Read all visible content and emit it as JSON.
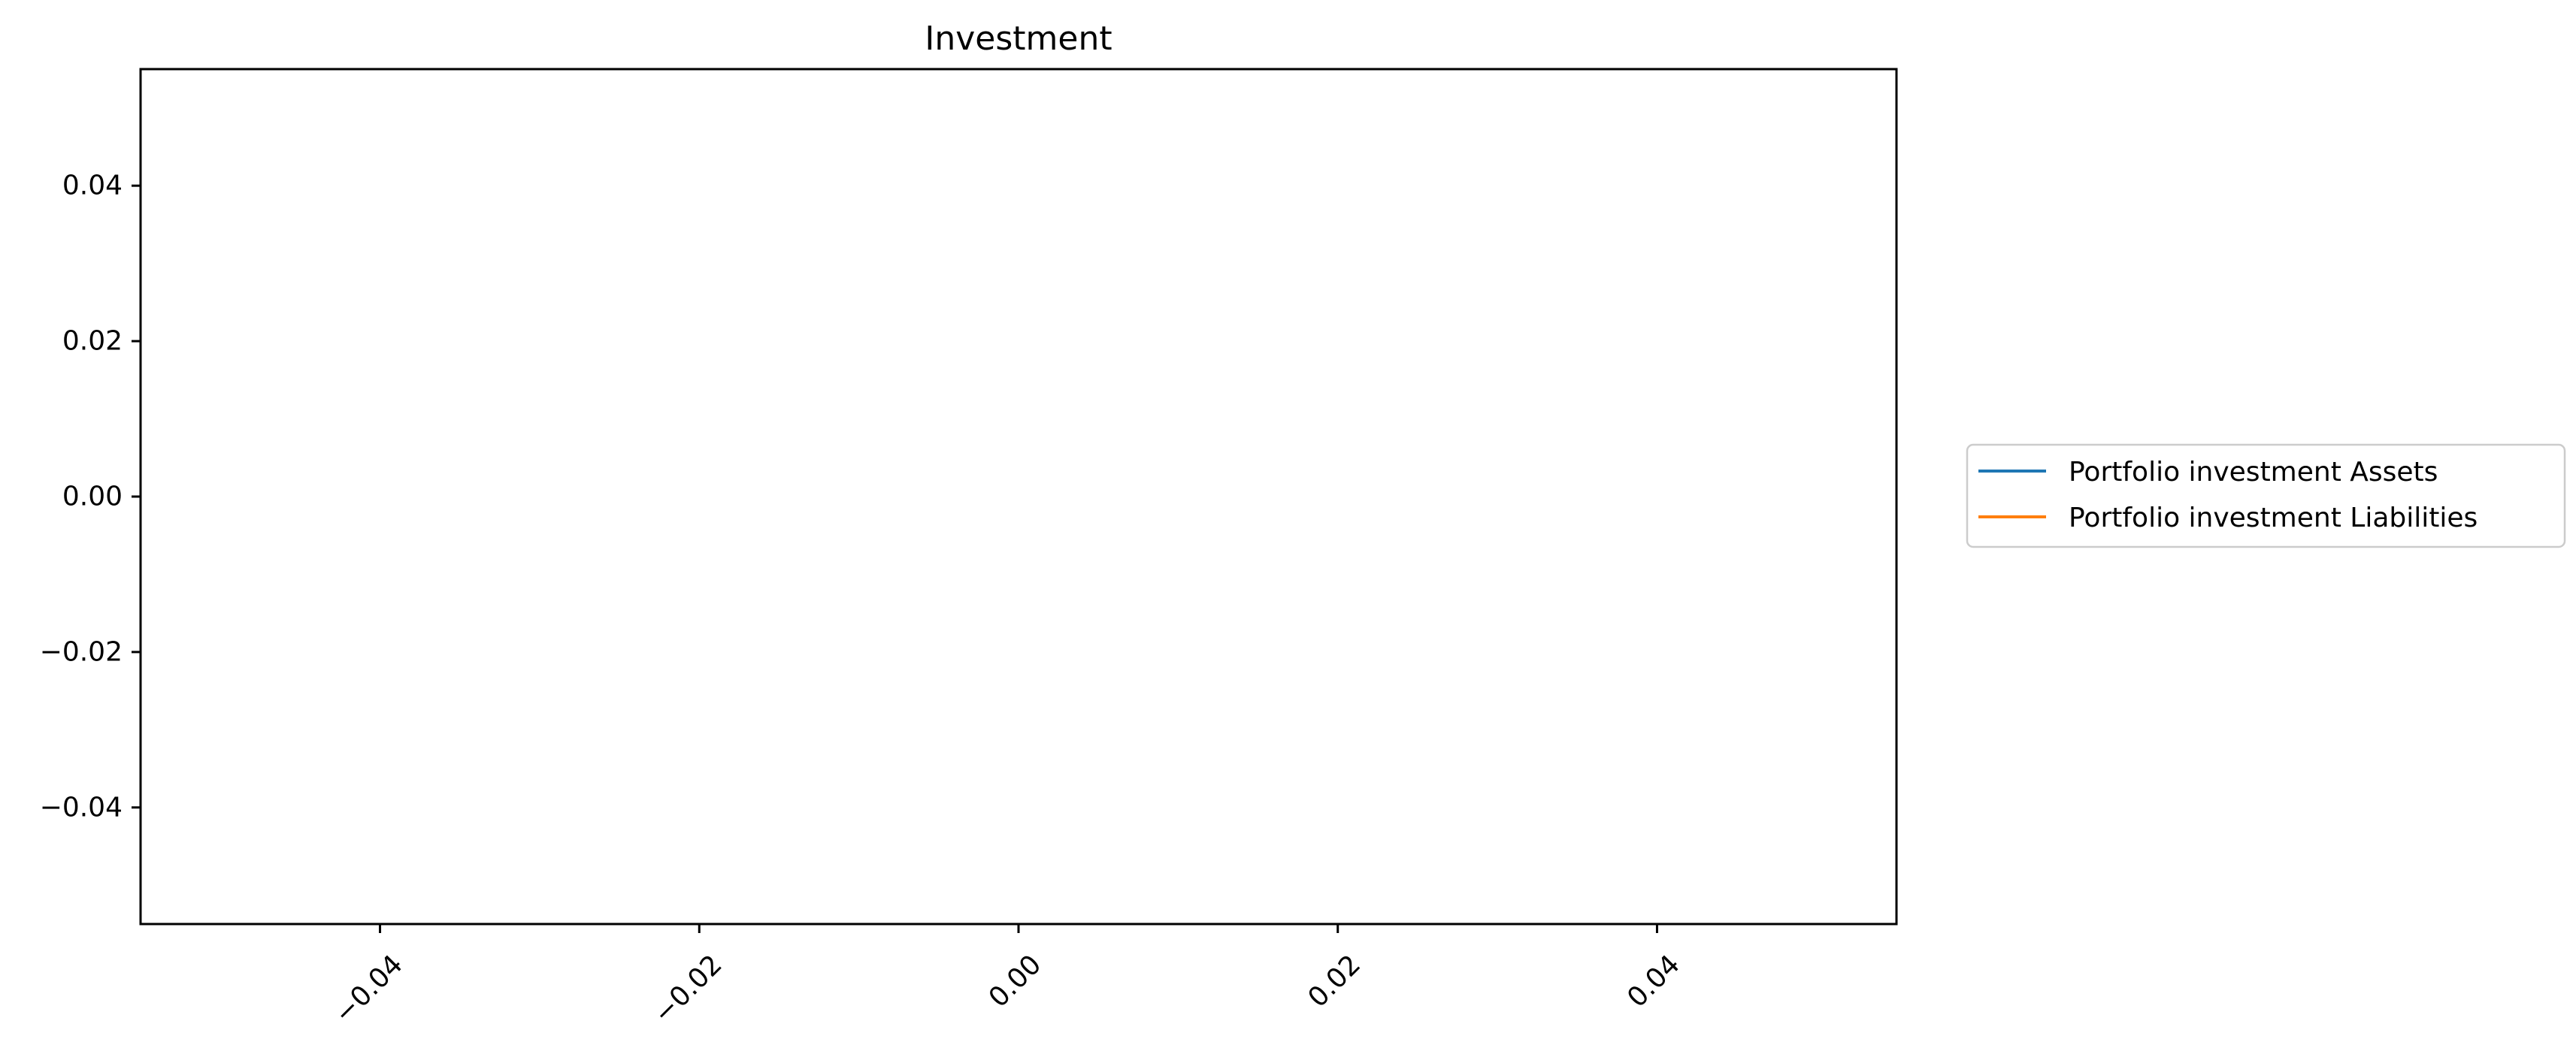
{
  "chart_data": {
    "type": "line",
    "title": "Investment",
    "xlabel": "",
    "ylabel": "",
    "xlim": [
      -0.055,
      0.055
    ],
    "ylim": [
      -0.055,
      0.055
    ],
    "xticks": [
      -0.04,
      -0.02,
      0.0,
      0.02,
      0.04
    ],
    "xtick_labels": [
      "−0.04",
      "−0.02",
      "0.00",
      "0.02",
      "0.04"
    ],
    "yticks": [
      0.04,
      0.02,
      0.0,
      -0.02,
      -0.04
    ],
    "ytick_labels": [
      "0.04",
      "0.02",
      "0.00",
      "−0.02",
      "−0.04"
    ],
    "xtick_rotation_deg": 45,
    "grid": false,
    "legend_position": "outside-right",
    "series": [
      {
        "name": "Portfolio investment Assets",
        "color": "#1f77b4",
        "x": [],
        "y": []
      },
      {
        "name": "Portfolio investment Liabilities",
        "color": "#ff7f0e",
        "x": [],
        "y": []
      }
    ]
  }
}
